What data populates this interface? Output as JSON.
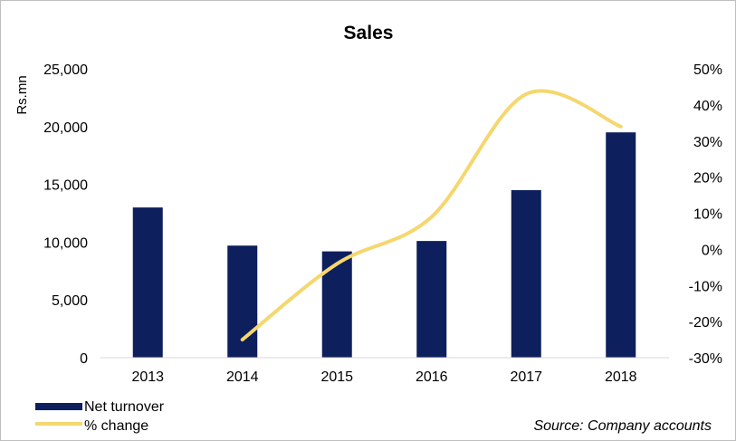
{
  "chart_data": {
    "type": "bar",
    "title": "Sales",
    "categories": [
      "2013",
      "2014",
      "2015",
      "2016",
      "2017",
      "2018"
    ],
    "series": [
      {
        "name": "Net turnover",
        "type": "bar",
        "axis": "left",
        "color": "#0d1f5c",
        "values": [
          13000,
          9700,
          9200,
          10100,
          14500,
          19500
        ]
      },
      {
        "name": "% change",
        "type": "line",
        "axis": "right",
        "color": "#f5d76e",
        "values": [
          null,
          -25,
          -4,
          9,
          43,
          34
        ]
      }
    ],
    "ylabel": "Rs.mn",
    "ylim": [
      0,
      25000
    ],
    "yticks": [
      0,
      5000,
      10000,
      15000,
      20000,
      25000
    ],
    "ytick_labels": [
      "0",
      "5,000",
      "10,000",
      "15,000",
      "20,000",
      "25,000"
    ],
    "y2lim": [
      -30,
      50
    ],
    "y2ticks": [
      -30,
      -20,
      -10,
      0,
      10,
      20,
      30,
      40,
      50
    ],
    "y2tick_labels": [
      "-30%",
      "-20%",
      "-10%",
      "0%",
      "10%",
      "20%",
      "30%",
      "40%",
      "50%"
    ],
    "legend": [
      "Net turnover",
      "% change"
    ],
    "legend_position": "bottom-left",
    "grid": false,
    "source": "Source: Company accounts"
  }
}
